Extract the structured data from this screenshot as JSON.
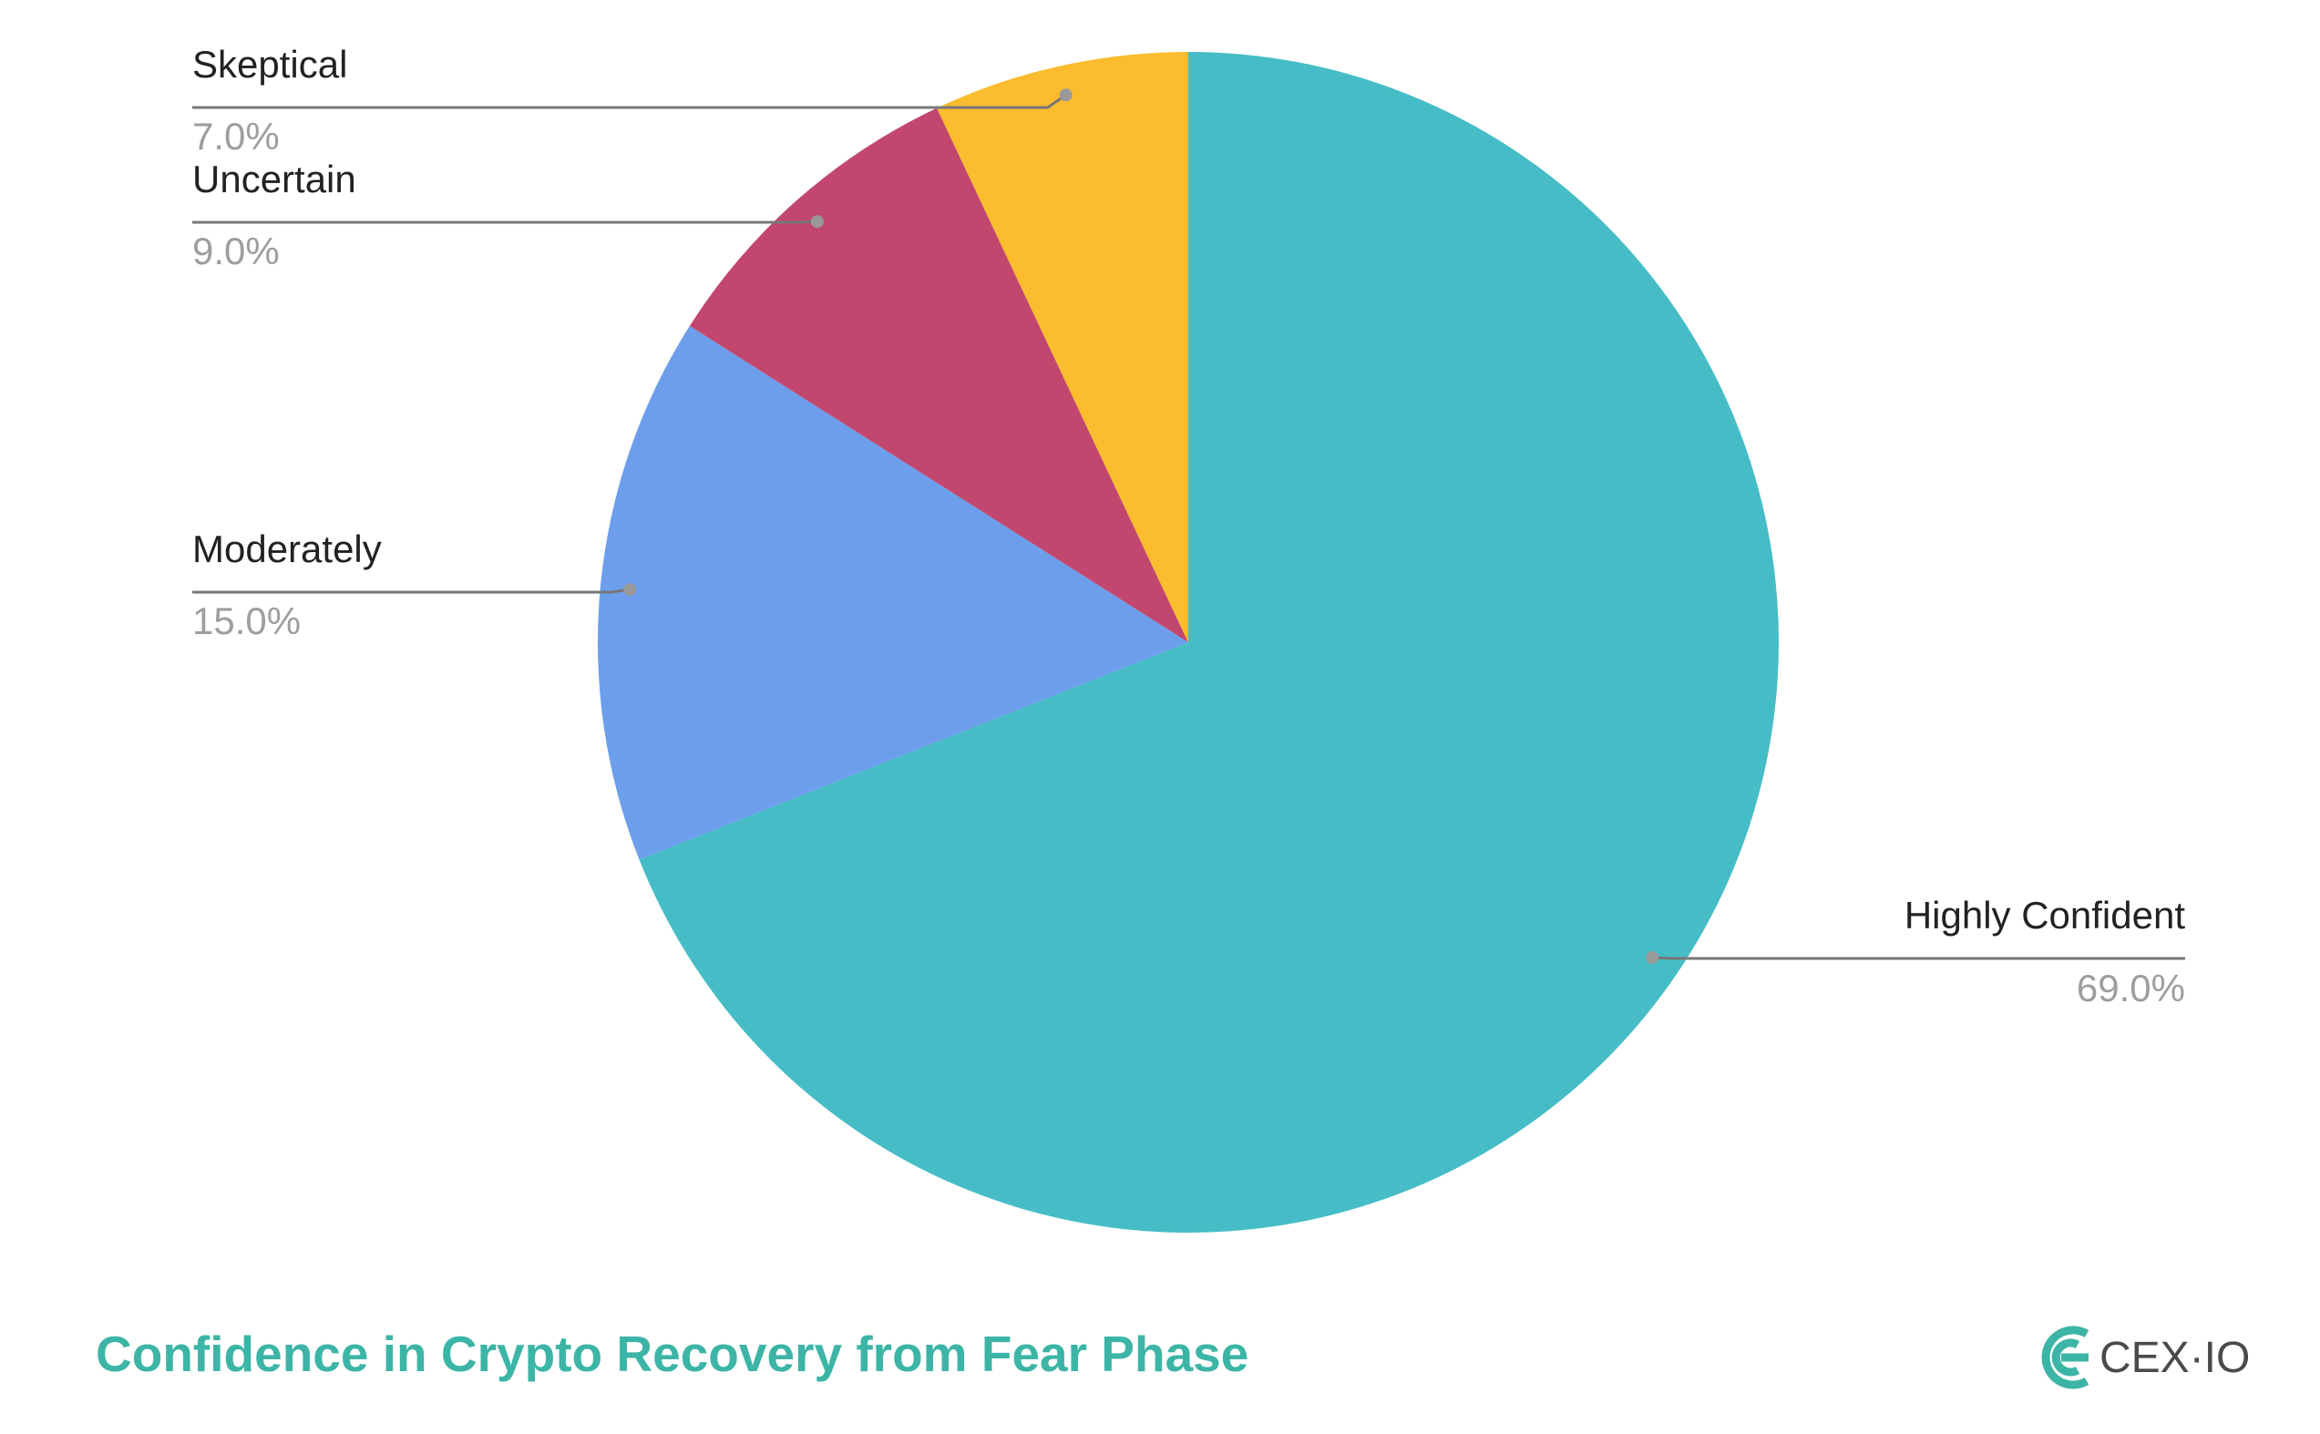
{
  "chart_data": {
    "type": "pie",
    "title": "Confidence in Crypto Recovery from Fear Phase",
    "logo": "CEX·IO",
    "categories": [
      "Highly Confident",
      "Moderately",
      "Uncertain",
      "Skeptical"
    ],
    "values": [
      69,
      15,
      9,
      7
    ],
    "value_labels": [
      "69.0%",
      "15.0%",
      "9.0%",
      "7.0%"
    ],
    "colors": [
      "#46bdc6",
      "#6d9eeb",
      "#c2476f",
      "#fbbc2d"
    ]
  }
}
